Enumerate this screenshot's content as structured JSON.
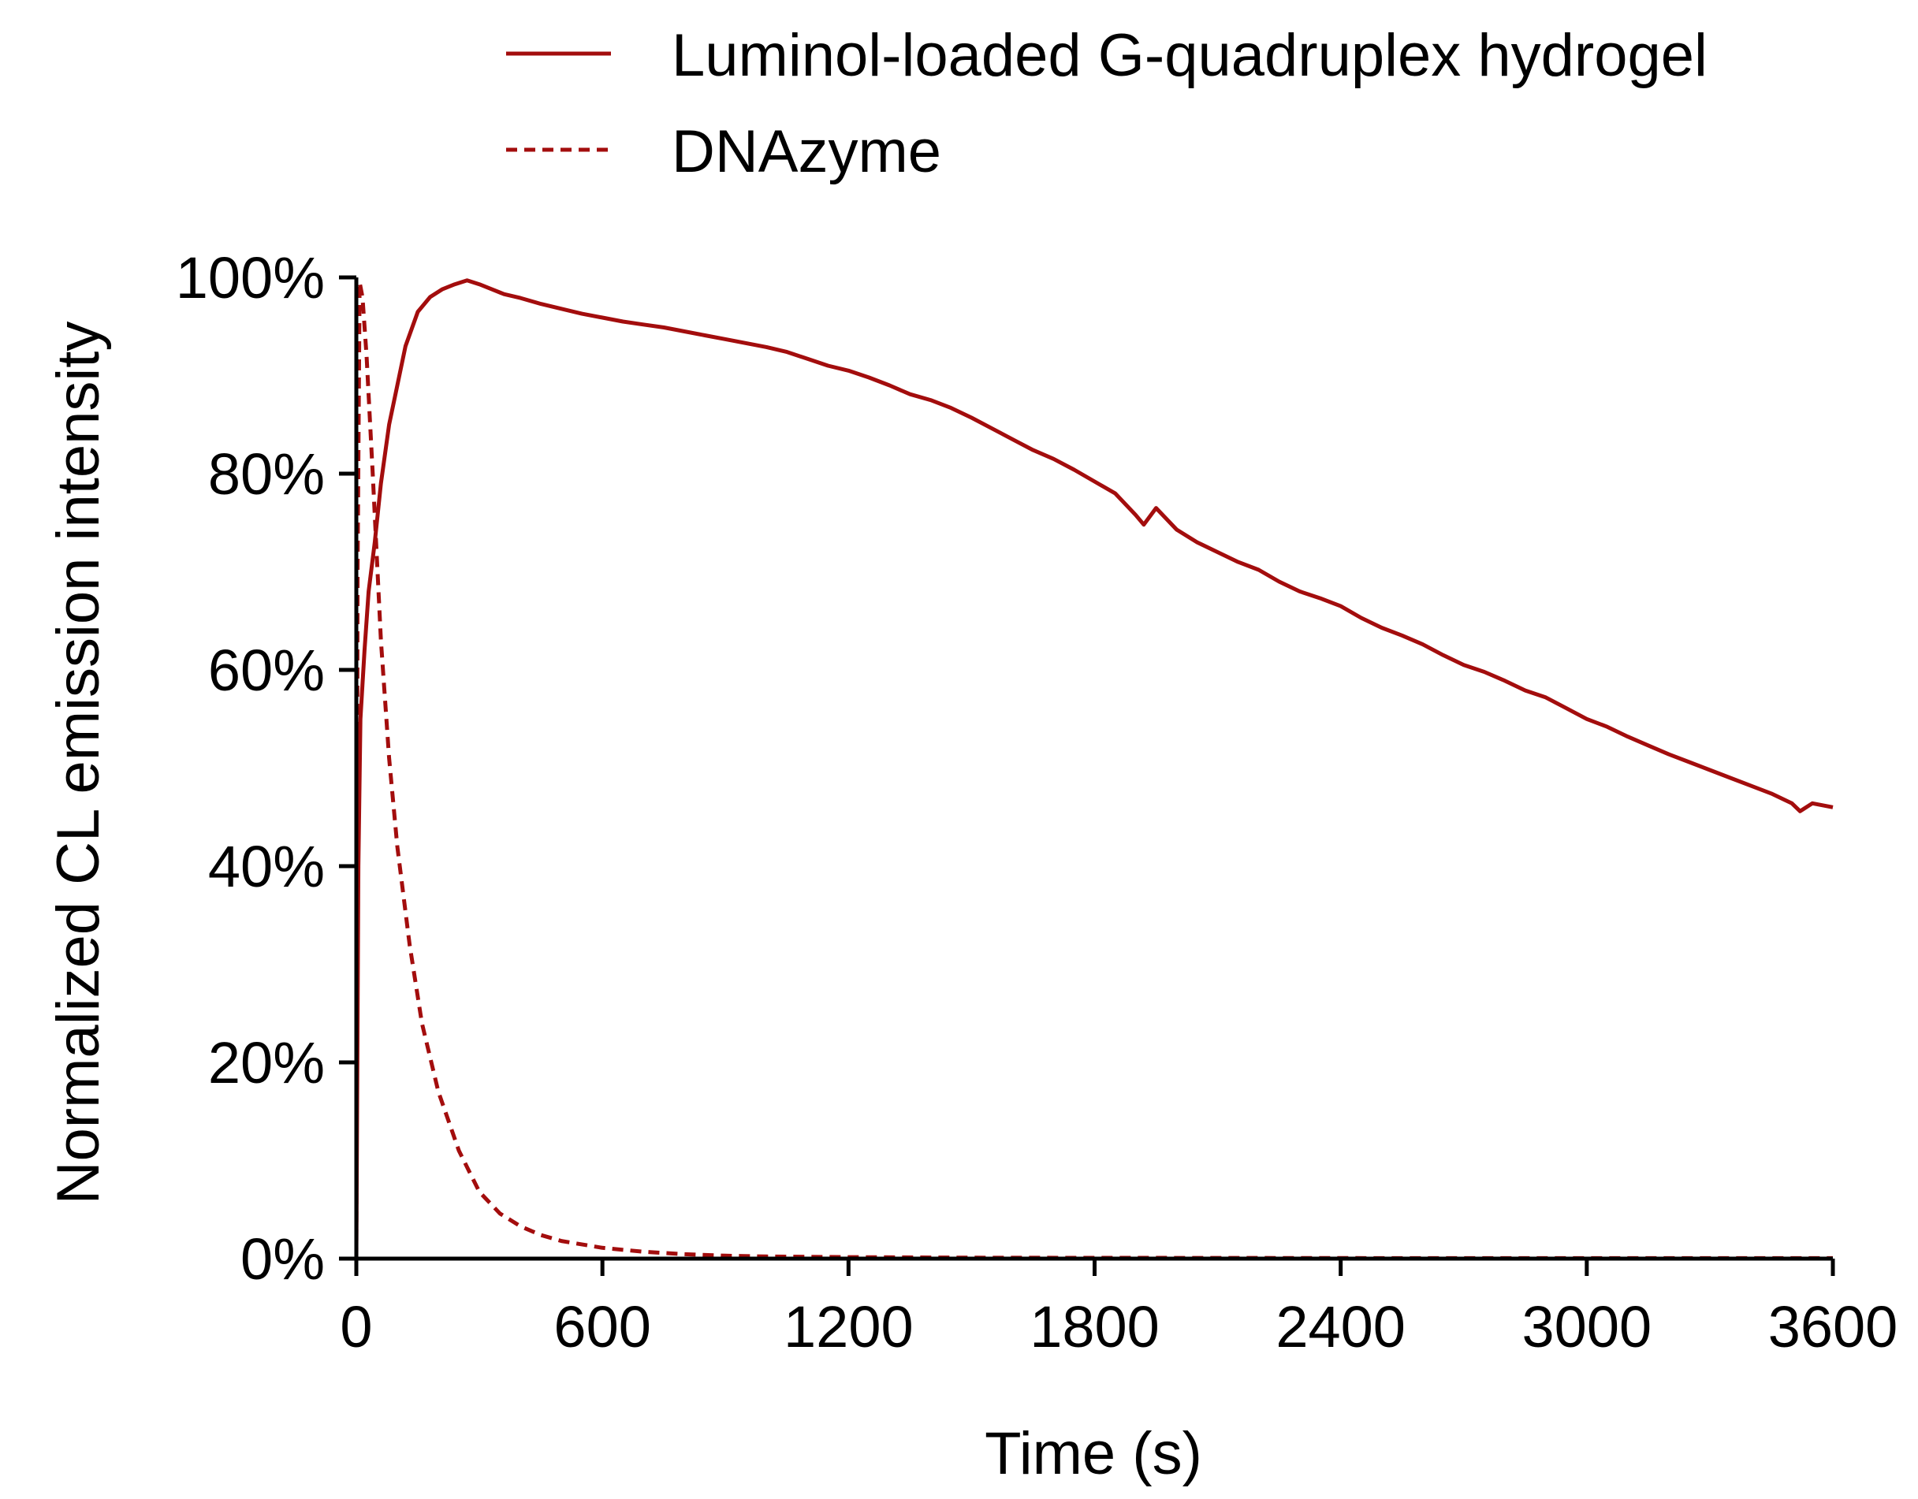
{
  "chart_data": {
    "type": "line",
    "xlabel": "Time (s)",
    "ylabel": "Normalized CL emission intensity",
    "xlim": [
      0,
      3600
    ],
    "ylim": [
      0,
      100
    ],
    "x_ticks": [
      0,
      600,
      1200,
      1800,
      2400,
      3000,
      3600
    ],
    "y_ticks": [
      0,
      20,
      40,
      60,
      80,
      100
    ],
    "x_tick_labels": [
      "0",
      "600",
      "1200",
      "1800",
      "2400",
      "3000",
      "3600"
    ],
    "y_tick_labels": [
      "0%",
      "20%",
      "40%",
      "60%",
      "80%",
      "100%"
    ],
    "grid": false,
    "legend_position": "top",
    "series": [
      {
        "name": "Luminol-loaded G-quadruplex hydrogel",
        "color": "#a30d0d",
        "dash": "solid",
        "x": [
          0,
          5,
          10,
          20,
          30,
          45,
          60,
          80,
          100,
          120,
          150,
          180,
          210,
          240,
          270,
          300,
          330,
          360,
          400,
          450,
          500,
          550,
          600,
          650,
          700,
          750,
          800,
          850,
          900,
          950,
          1000,
          1050,
          1100,
          1150,
          1200,
          1250,
          1300,
          1350,
          1400,
          1450,
          1500,
          1550,
          1600,
          1650,
          1700,
          1750,
          1800,
          1850,
          1900,
          1920,
          1950,
          2000,
          2050,
          2100,
          2150,
          2200,
          2250,
          2300,
          2350,
          2400,
          2450,
          2500,
          2550,
          2600,
          2650,
          2700,
          2750,
          2800,
          2850,
          2900,
          2950,
          3000,
          3050,
          3100,
          3150,
          3200,
          3250,
          3300,
          3350,
          3400,
          3450,
          3500,
          3520,
          3550,
          3600
        ],
        "y": [
          0,
          40,
          55,
          62,
          68,
          73,
          79,
          85,
          89,
          93,
          96.5,
          98,
          98.8,
          99.3,
          99.7,
          99.3,
          98.8,
          98.3,
          97.9,
          97.3,
          96.8,
          96.3,
          95.9,
          95.5,
          95.2,
          94.9,
          94.5,
          94.1,
          93.7,
          93.3,
          92.9,
          92.4,
          91.7,
          91.0,
          90.5,
          89.8,
          89.0,
          88.1,
          87.5,
          86.7,
          85.7,
          84.6,
          83.5,
          82.4,
          81.5,
          80.4,
          79.2,
          78.0,
          75.8,
          74.8,
          76.5,
          74.3,
          73.0,
          72.0,
          71.0,
          70.2,
          69.0,
          68.0,
          67.3,
          66.5,
          65.3,
          64.3,
          63.5,
          62.6,
          61.5,
          60.5,
          59.8,
          58.9,
          57.9,
          57.2,
          56.1,
          55.0,
          54.2,
          53.2,
          52.3,
          51.4,
          50.6,
          49.8,
          49.0,
          48.2,
          47.4,
          46.4,
          45.6,
          46.4,
          46.0
        ]
      },
      {
        "name": "DNAzyme",
        "color": "#a30d0d",
        "dash": "dashed",
        "x": [
          0,
          3,
          8,
          15,
          25,
          40,
          60,
          80,
          100,
          130,
          160,
          200,
          250,
          300,
          350,
          400,
          450,
          500,
          600,
          700,
          800,
          900,
          1000,
          1200,
          1500,
          1800,
          2100,
          2400,
          2700,
          3000,
          3300,
          3600
        ],
        "y": [
          0,
          70,
          99.5,
          98,
          92,
          80,
          63,
          51,
          42,
          32,
          24,
          17,
          11,
          6.8,
          4.6,
          3.3,
          2.4,
          1.8,
          1.1,
          0.7,
          0.45,
          0.3,
          0.22,
          0.15,
          0.1,
          0.08,
          0.07,
          0.06,
          0.05,
          0.05,
          0.05,
          0.05
        ]
      }
    ]
  }
}
